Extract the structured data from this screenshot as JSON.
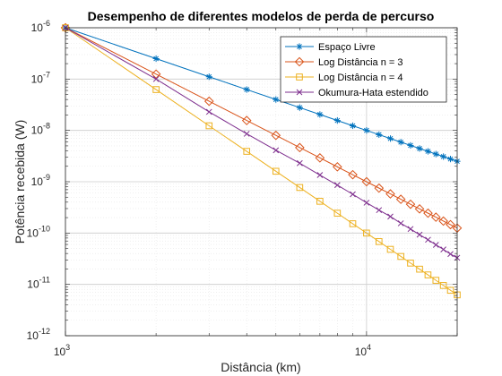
{
  "chart_data": {
    "type": "line",
    "title": "Desempenho de diferentes modelos de perda de percurso",
    "xlabel": "Distância (km)",
    "ylabel": "Potência recebida (W)",
    "xscale": "log",
    "yscale": "log",
    "xlim": [
      1000,
      20000
    ],
    "ylim": [
      1e-12,
      1e-06
    ],
    "grid": "on (major and minor)",
    "legend_position": "top-right",
    "x_ticks": [
      {
        "value": 1000,
        "base": "10",
        "exp": "3"
      },
      {
        "value": 10000,
        "base": "10",
        "exp": "4"
      }
    ],
    "y_ticks": [
      {
        "value": 1e-12,
        "base": "10",
        "exp": "-12"
      },
      {
        "value": 1e-11,
        "base": "10",
        "exp": "-11"
      },
      {
        "value": 1e-10,
        "base": "10",
        "exp": "-10"
      },
      {
        "value": 1e-09,
        "base": "10",
        "exp": "-9"
      },
      {
        "value": 1e-08,
        "base": "10",
        "exp": "-8"
      },
      {
        "value": 1e-07,
        "base": "10",
        "exp": "-7"
      },
      {
        "value": 1e-06,
        "base": "10",
        "exp": "-6"
      }
    ],
    "x": [
      1000,
      2000,
      3000,
      4000,
      5000,
      6000,
      7000,
      8000,
      9000,
      10000,
      11000,
      12000,
      13000,
      14000,
      15000,
      16000,
      17000,
      18000,
      19000,
      20000
    ],
    "series": [
      {
        "name": "Espaço Livre",
        "color": "#0072BD",
        "marker": "asterisk",
        "values": [
          1e-06,
          2.5e-07,
          1.11e-07,
          6.25e-08,
          4e-08,
          2.78e-08,
          2.04e-08,
          1.56e-08,
          1.23e-08,
          1e-08,
          8.26e-09,
          6.94e-09,
          5.92e-09,
          5.1e-09,
          4.44e-09,
          3.91e-09,
          3.46e-09,
          3.09e-09,
          2.77e-09,
          2.5e-09
        ]
      },
      {
        "name": "Log Distância n = 3",
        "color": "#D95319",
        "marker": "diamond",
        "values": [
          1e-06,
          1.25e-07,
          3.7e-08,
          1.56e-08,
          8e-09,
          4.63e-09,
          2.92e-09,
          1.95e-09,
          1.37e-09,
          1e-09,
          7.51e-10,
          5.79e-10,
          4.55e-10,
          3.64e-10,
          2.96e-10,
          2.44e-10,
          2.04e-10,
          1.71e-10,
          1.46e-10,
          1.25e-10
        ]
      },
      {
        "name": "Log Distância n = 4",
        "color": "#EDB120",
        "marker": "square",
        "values": [
          1e-06,
          6.25e-08,
          1.23e-08,
          3.91e-09,
          1.6e-09,
          7.72e-10,
          4.16e-10,
          2.44e-10,
          1.52e-10,
          1e-10,
          6.83e-11,
          4.82e-11,
          3.5e-11,
          2.6e-11,
          1.98e-11,
          1.53e-11,
          1.2e-11,
          9.53e-12,
          7.67e-12,
          6.25e-12
        ]
      },
      {
        "name": "Okumura-Hata estendido",
        "color": "#7E2F8E",
        "marker": "x",
        "values": [
          1e-06,
          1e-07,
          2.3e-08,
          8.6e-09,
          4.1e-09,
          2.3e-09,
          1.35e-09,
          8.6e-10,
          5.7e-10,
          3.9e-10,
          2.8e-10,
          2.1e-10,
          1.55e-10,
          1.2e-10,
          9.3e-11,
          7.4e-11,
          5.9e-11,
          4.8e-11,
          3.9e-11,
          3.3e-11
        ]
      }
    ]
  }
}
